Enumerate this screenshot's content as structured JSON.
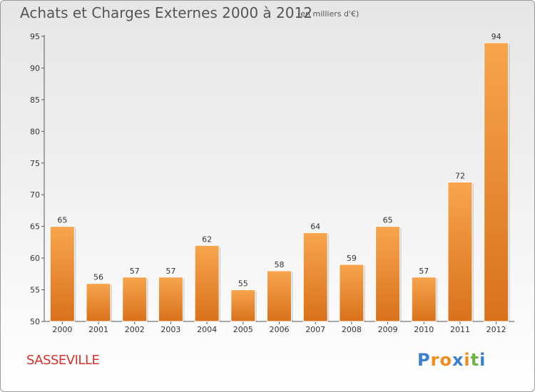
{
  "header": {
    "title": "Achats et Charges Externes 2000 à 2012",
    "subtitle": "(en milliers d'€)"
  },
  "footer": {
    "commune": "SASSEVILLE",
    "logo_letters": [
      "P",
      "r",
      "o",
      "x",
      "i",
      "t",
      "i"
    ]
  },
  "colors": {
    "bar_light": "#f7a54e",
    "bar_dark": "#d9711b",
    "commune": "#d0342c",
    "logo": [
      "#3a7fd0",
      "#f08c1a",
      "#f08c1a",
      "#3a7fd0",
      "#f08c1a",
      "#6cb33f",
      "#3a7fd0"
    ]
  },
  "chart_data": {
    "type": "bar",
    "categories": [
      "2000",
      "2001",
      "2002",
      "2003",
      "2004",
      "2005",
      "2006",
      "2007",
      "2008",
      "2009",
      "2010",
      "2011",
      "2012"
    ],
    "values": [
      65,
      56,
      57,
      57,
      62,
      55,
      58,
      64,
      59,
      65,
      57,
      72,
      94
    ],
    "ylim": [
      50,
      95
    ],
    "yticks": [
      50,
      55,
      60,
      65,
      70,
      75,
      80,
      85,
      90,
      95
    ],
    "grid": false,
    "data_labels": true
  }
}
